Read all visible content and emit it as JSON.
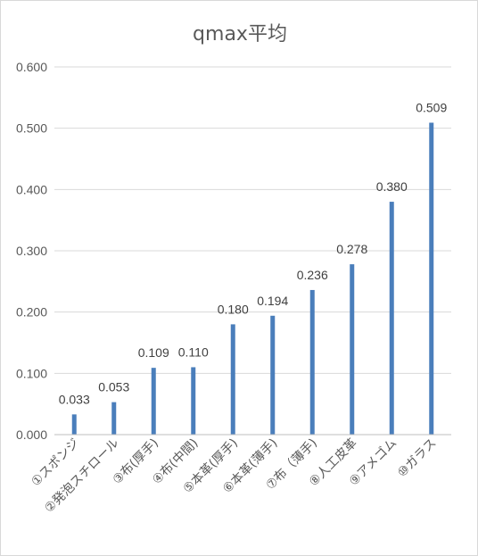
{
  "chart_data": {
    "type": "bar",
    "title": "qmax平均",
    "categories": [
      "①スポンジ",
      "②発泡スチロール",
      "③布(厚手)",
      "④布(中間)",
      "⑤本革(厚手)",
      "⑥本革(薄手)",
      "⑦布（薄手)",
      "⑧人工皮革",
      "⑨アメゴム",
      "⑩ガラス"
    ],
    "values": [
      0.033,
      0.053,
      0.109,
      0.11,
      0.18,
      0.194,
      0.236,
      0.278,
      0.38,
      0.509
    ],
    "value_labels": [
      "0.033",
      "0.053",
      "0.109",
      "0.110",
      "0.180",
      "0.194",
      "0.236",
      "0.278",
      "0.380",
      "0.509"
    ],
    "y_ticks": [
      "0.000",
      "0.100",
      "0.200",
      "0.300",
      "0.400",
      "0.500",
      "0.600"
    ],
    "ylim": [
      0,
      0.6
    ],
    "grid": true,
    "legend": "none",
    "bar_color": "#4a7ebb"
  }
}
